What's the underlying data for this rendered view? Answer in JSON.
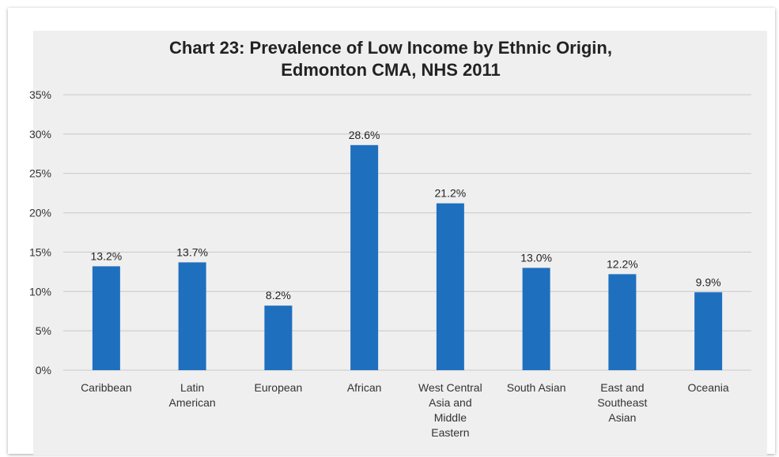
{
  "chart_data": {
    "type": "bar",
    "title": "Chart 23: Prevalence of Low Income by Ethnic Origin,",
    "subtitle": "Edmonton CMA, NHS 2011",
    "categories": [
      "Caribbean",
      "Latin American",
      "European",
      "African",
      "West Central Asia and Middle Eastern",
      "South Asian",
      "East and Southeast Asian",
      "Oceania"
    ],
    "category_lines": [
      [
        "Caribbean"
      ],
      [
        "Latin",
        "American"
      ],
      [
        "European"
      ],
      [
        "African"
      ],
      [
        "West Central",
        "Asia and",
        "Middle",
        "Eastern"
      ],
      [
        "South Asian"
      ],
      [
        "East and",
        "Southeast",
        "Asian"
      ],
      [
        "Oceania"
      ]
    ],
    "values": [
      13.2,
      13.7,
      8.2,
      28.6,
      21.2,
      13.0,
      12.2,
      9.9
    ],
    "value_labels": [
      "13.2%",
      "13.7%",
      "8.2%",
      "28.6%",
      "21.2%",
      "13.0%",
      "12.2%",
      "9.9%"
    ],
    "ylim": [
      0,
      35
    ],
    "yticks": [
      0,
      5,
      10,
      15,
      20,
      25,
      30,
      35
    ],
    "ytick_labels": [
      "0%",
      "5%",
      "10%",
      "15%",
      "20%",
      "25%",
      "30%",
      "35%"
    ],
    "xlabel": "",
    "ylabel": "",
    "grid": true,
    "legend": "none",
    "bar_color": "#1f6fbf",
    "grid_color": "#c8c8c8",
    "background_color": "#efefef"
  }
}
